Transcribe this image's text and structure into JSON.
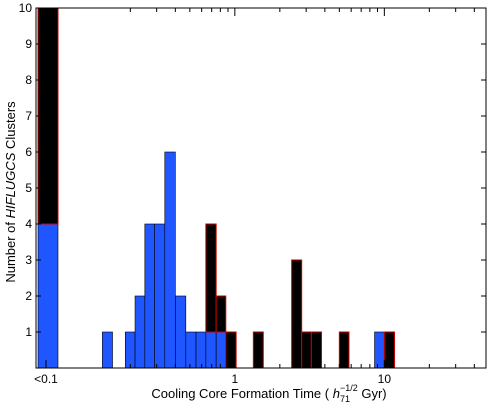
{
  "chart_data": {
    "type": "bar",
    "xscale": "log",
    "xlabel_parts": {
      "before": "Cooling Core Formation Time ( ",
      "h": "h",
      "h_sub": "71",
      "h_sup": "−1/2",
      "after": " Gyr)"
    },
    "ylabel_parts": {
      "before": "Number of ",
      "italic": "HIFLUGCS",
      "after": " Clusters"
    },
    "ylim": [
      0,
      10
    ],
    "yticks": [
      1,
      2,
      3,
      4,
      5,
      6,
      7,
      8,
      9,
      10
    ],
    "xticks": [
      {
        "value": "<0.1",
        "label": "<0.1"
      },
      {
        "value": 1,
        "label": "1"
      },
      {
        "value": 10,
        "label": "10"
      }
    ],
    "grid": false,
    "legend": "none",
    "colors": {
      "blue_series": "#1f56ff",
      "black_series": "#000000",
      "black_edge": "#cc0000",
      "blue_edge": "#000000"
    },
    "bins": [
      {
        "x_start": "<0.1",
        "x_end": 0.1,
        "blue": 4,
        "black": 6
      },
      {
        "x_start": 0.13,
        "x_end": 0.152,
        "blue": 1,
        "black": 0
      },
      {
        "x_start": 0.185,
        "x_end": 0.215,
        "blue": 1,
        "black": 0
      },
      {
        "x_start": 0.215,
        "x_end": 0.25,
        "blue": 2,
        "black": 0
      },
      {
        "x_start": 0.25,
        "x_end": 0.29,
        "blue": 4,
        "black": 0
      },
      {
        "x_start": 0.29,
        "x_end": 0.34,
        "blue": 4,
        "black": 0
      },
      {
        "x_start": 0.34,
        "x_end": 0.4,
        "blue": 6,
        "black": 0
      },
      {
        "x_start": 0.4,
        "x_end": 0.47,
        "blue": 2,
        "black": 0
      },
      {
        "x_start": 0.47,
        "x_end": 0.55,
        "blue": 1,
        "black": 0
      },
      {
        "x_start": 0.55,
        "x_end": 0.64,
        "blue": 1,
        "black": 0
      },
      {
        "x_start": 0.64,
        "x_end": 0.75,
        "blue": 1,
        "black": 3
      },
      {
        "x_start": 0.75,
        "x_end": 0.87,
        "blue": 1,
        "black": 1
      },
      {
        "x_start": 0.87,
        "x_end": 1.02,
        "blue": 0,
        "black": 1
      },
      {
        "x_start": 1.33,
        "x_end": 1.55,
        "blue": 0,
        "black": 1
      },
      {
        "x_start": 2.4,
        "x_end": 2.8,
        "blue": 0,
        "black": 3
      },
      {
        "x_start": 2.8,
        "x_end": 3.25,
        "blue": 0,
        "black": 1
      },
      {
        "x_start": 3.25,
        "x_end": 3.8,
        "blue": 0,
        "black": 1
      },
      {
        "x_start": 5.0,
        "x_end": 5.8,
        "blue": 0,
        "black": 1
      },
      {
        "x_start": 8.6,
        "x_end": 10.0,
        "blue": 1,
        "black": 0
      },
      {
        "x_start": 10.0,
        "x_end": 11.7,
        "blue": 0,
        "black": 1
      }
    ]
  }
}
